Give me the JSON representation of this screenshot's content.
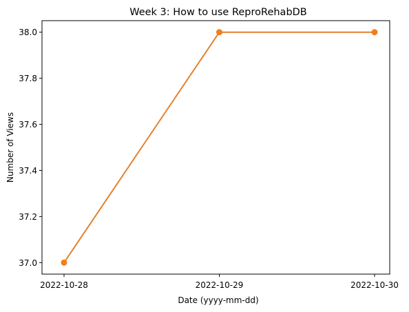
{
  "chart_data": {
    "type": "line",
    "title": "Week 3: How to use ReproRehabDB",
    "xlabel": "Date (yyyy-mm-dd)",
    "ylabel": "Number of Views",
    "categories": [
      "2022-10-28",
      "2022-10-29",
      "2022-10-30"
    ],
    "series": [
      {
        "values": [
          37,
          38,
          38
        ],
        "color": "#f07f1c",
        "underlay_color": "#3b7bb6"
      }
    ],
    "ylim": [
      36.95,
      38.05
    ],
    "yticks": [
      37.0,
      37.2,
      37.4,
      37.6,
      37.8,
      38.0
    ],
    "ytick_labels": [
      "37.0",
      "37.2",
      "37.4",
      "37.6",
      "37.8",
      "38.0"
    ],
    "grid": false,
    "markers": "circle"
  }
}
